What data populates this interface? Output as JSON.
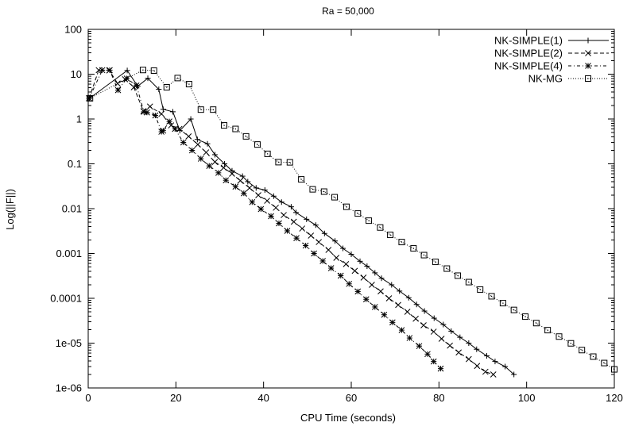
{
  "chart_data": {
    "type": "line",
    "title": "Ra = 50,000",
    "xlabel": "CPU Time (seconds)",
    "ylabel": "Log(||F||)",
    "xlim": [
      0,
      120
    ],
    "ylim": [
      1e-06,
      100
    ],
    "yscale": "log",
    "grid": false,
    "legend_position": "top-right",
    "xticks": [
      0,
      20,
      40,
      60,
      80,
      100,
      120
    ],
    "xtick_labels": [
      "0",
      "20",
      "40",
      "60",
      "80",
      "100",
      "120"
    ],
    "yticks": [
      100,
      10,
      1,
      0.1,
      0.01,
      0.001,
      0.0001,
      1e-05,
      1e-06
    ],
    "ytick_labels": [
      "100",
      "10",
      "1",
      "0.1",
      "0.01",
      "0.001",
      "0.0001",
      "1e-05",
      "1e-06"
    ],
    "series": [
      {
        "name": "NK-SIMPLE(1)",
        "line_style": "solid",
        "marker": "plus",
        "points": [
          [
            0.3,
            2.9
          ],
          [
            8.9,
            12.1
          ],
          [
            11.3,
            5.4
          ],
          [
            13.6,
            8.1
          ],
          [
            16.1,
            4.6
          ],
          [
            17.1,
            1.65
          ],
          [
            19.3,
            1.45
          ],
          [
            20.9,
            0.55
          ],
          [
            23.4,
            1.0
          ],
          [
            24.9,
            0.35
          ],
          [
            27.2,
            0.28
          ],
          [
            28.9,
            0.16
          ],
          [
            31.1,
            0.1
          ],
          [
            32.8,
            0.07
          ],
          [
            35.2,
            0.053
          ],
          [
            36.4,
            0.04
          ],
          [
            38.3,
            0.029
          ],
          [
            40.3,
            0.026
          ],
          [
            42.3,
            0.019
          ],
          [
            44.1,
            0.014
          ],
          [
            46.3,
            0.011
          ],
          [
            47.4,
            0.0082
          ],
          [
            49.8,
            0.0058
          ],
          [
            51.9,
            0.0043
          ],
          [
            53.9,
            0.0028
          ],
          [
            56.3,
            0.0019
          ],
          [
            58.1,
            0.0013
          ],
          [
            60.0,
            0.00096
          ],
          [
            62.0,
            0.00067
          ],
          [
            63.6,
            0.00052
          ],
          [
            65.4,
            0.00037
          ],
          [
            66.9,
            0.00028
          ],
          [
            69.2,
            0.0002
          ],
          [
            71.0,
            0.000145
          ],
          [
            73.1,
            0.000103
          ],
          [
            74.9,
            7.3e-05
          ],
          [
            76.7,
            5.2e-05
          ],
          [
            78.9,
            3.6e-05
          ],
          [
            81.0,
            2.6e-05
          ],
          [
            82.8,
            1.85e-05
          ],
          [
            84.8,
            1.35e-05
          ],
          [
            86.8,
            1e-05
          ],
          [
            88.6,
            7.3e-06
          ],
          [
            90.9,
            5.2e-06
          ],
          [
            92.8,
            3.9e-06
          ],
          [
            95.1,
            3e-06
          ],
          [
            97.1,
            2e-06
          ]
        ]
      },
      {
        "name": "NK-SIMPLE(2)",
        "line_style": "dashed",
        "marker": "cross",
        "points": [
          [
            0.2,
            2.9
          ],
          [
            2.4,
            12.3
          ],
          [
            4.8,
            12.1
          ],
          [
            6.7,
            6.2
          ],
          [
            8.4,
            7.7
          ],
          [
            10.4,
            5.1
          ],
          [
            12.6,
            1.5
          ],
          [
            14.1,
            1.9
          ],
          [
            16.7,
            1.3
          ],
          [
            18.9,
            0.72
          ],
          [
            20.8,
            0.6
          ],
          [
            22.9,
            0.41
          ],
          [
            25.0,
            0.27
          ],
          [
            26.9,
            0.18
          ],
          [
            28.9,
            0.11
          ],
          [
            30.9,
            0.082
          ],
          [
            32.8,
            0.06
          ],
          [
            34.7,
            0.042
          ],
          [
            36.8,
            0.029
          ],
          [
            38.8,
            0.02
          ],
          [
            40.8,
            0.015
          ],
          [
            42.8,
            0.0105
          ],
          [
            44.6,
            0.0072
          ],
          [
            46.9,
            0.0051
          ],
          [
            48.8,
            0.0036
          ],
          [
            50.8,
            0.0025
          ],
          [
            52.6,
            0.0018
          ],
          [
            54.8,
            0.0012
          ],
          [
            56.6,
            0.0008
          ],
          [
            58.8,
            0.00058
          ],
          [
            60.8,
            0.00041
          ],
          [
            62.8,
            0.00029
          ],
          [
            64.7,
            0.0002
          ],
          [
            66.7,
            0.000143
          ],
          [
            68.6,
            0.0001
          ],
          [
            70.7,
            7.1e-05
          ],
          [
            72.8,
            5e-05
          ],
          [
            74.7,
            3.5e-05
          ],
          [
            76.5,
            2.5e-05
          ],
          [
            78.8,
            1.8e-05
          ],
          [
            80.6,
            1.25e-05
          ],
          [
            82.5,
            8.8e-06
          ],
          [
            84.5,
            6.2e-06
          ],
          [
            86.8,
            4.4e-06
          ],
          [
            88.7,
            3.1e-06
          ],
          [
            90.6,
            2.3e-06
          ],
          [
            92.4,
            2e-06
          ]
        ]
      },
      {
        "name": "NK-SIMPLE(4)",
        "line_style": "dash-dot",
        "marker": "star",
        "points": [
          [
            0.2,
            2.9
          ],
          [
            3.2,
            12.3
          ],
          [
            4.9,
            12.3
          ],
          [
            6.8,
            4.4
          ],
          [
            8.8,
            8.0
          ],
          [
            11.0,
            5.6
          ],
          [
            12.7,
            1.45
          ],
          [
            13.4,
            1.4
          ],
          [
            15.3,
            1.2
          ],
          [
            16.7,
            0.52
          ],
          [
            17.1,
            0.55
          ],
          [
            18.5,
            0.88
          ],
          [
            19.8,
            0.6
          ],
          [
            21.7,
            0.3
          ],
          [
            23.7,
            0.2
          ],
          [
            25.7,
            0.13
          ],
          [
            27.6,
            0.09
          ],
          [
            29.7,
            0.063
          ],
          [
            31.4,
            0.043
          ],
          [
            33.6,
            0.031
          ],
          [
            35.5,
            0.022
          ],
          [
            37.4,
            0.014
          ],
          [
            39.4,
            0.0098
          ],
          [
            41.7,
            0.0068
          ],
          [
            43.5,
            0.0047
          ],
          [
            45.4,
            0.0032
          ],
          [
            47.5,
            0.0022
          ],
          [
            49.6,
            0.0015
          ],
          [
            51.5,
            0.001
          ],
          [
            53.5,
            0.00068
          ],
          [
            55.4,
            0.00047
          ],
          [
            57.6,
            0.00032
          ],
          [
            59.5,
            0.00021
          ],
          [
            61.5,
            0.000142
          ],
          [
            63.4,
            9.5e-05
          ],
          [
            65.4,
            6.4e-05
          ],
          [
            67.5,
            4.3e-05
          ],
          [
            69.4,
            2.9e-05
          ],
          [
            71.5,
            1.95e-05
          ],
          [
            73.3,
            1.3e-05
          ],
          [
            75.5,
            8.6e-06
          ],
          [
            77.4,
            5.7e-06
          ],
          [
            78.8,
            3.9e-06
          ],
          [
            80.4,
            2.7e-06
          ]
        ]
      },
      {
        "name": "NK-MG",
        "line_style": "dotted",
        "marker": "square-dot",
        "points": [
          [
            0.4,
            2.9
          ],
          [
            12.5,
            12.4
          ],
          [
            15.0,
            12.0
          ],
          [
            17.9,
            5.1
          ],
          [
            20.4,
            8.2
          ],
          [
            23.0,
            6.0
          ],
          [
            25.7,
            1.62
          ],
          [
            28.5,
            1.62
          ],
          [
            31.0,
            0.72
          ],
          [
            33.6,
            0.6
          ],
          [
            36.0,
            0.41
          ],
          [
            38.6,
            0.27
          ],
          [
            40.9,
            0.167
          ],
          [
            43.4,
            0.109
          ],
          [
            46.0,
            0.108
          ],
          [
            48.6,
            0.045
          ],
          [
            51.2,
            0.027
          ],
          [
            53.8,
            0.024
          ],
          [
            56.2,
            0.018
          ],
          [
            58.9,
            0.011
          ],
          [
            61.5,
            0.0078
          ],
          [
            64.0,
            0.0054
          ],
          [
            66.6,
            0.0038
          ],
          [
            68.9,
            0.0026
          ],
          [
            71.5,
            0.0018
          ],
          [
            74.2,
            0.0013
          ],
          [
            76.6,
            0.00092
          ],
          [
            79.2,
            0.00065
          ],
          [
            81.8,
            0.00046
          ],
          [
            84.3,
            0.00032
          ],
          [
            86.8,
            0.00023
          ],
          [
            89.4,
            0.000157
          ],
          [
            92.0,
            0.000111
          ],
          [
            94.6,
            7.8e-05
          ],
          [
            97.1,
            5.5e-05
          ],
          [
            99.7,
            3.9e-05
          ],
          [
            102.2,
            2.8e-05
          ],
          [
            104.8,
            1.95e-05
          ],
          [
            107.4,
            1.4e-05
          ],
          [
            110.1,
            9.9e-06
          ],
          [
            112.6,
            7e-06
          ],
          [
            115.2,
            5e-06
          ],
          [
            117.7,
            3.6e-06
          ],
          [
            120.0,
            2.6e-06
          ]
        ]
      }
    ]
  }
}
